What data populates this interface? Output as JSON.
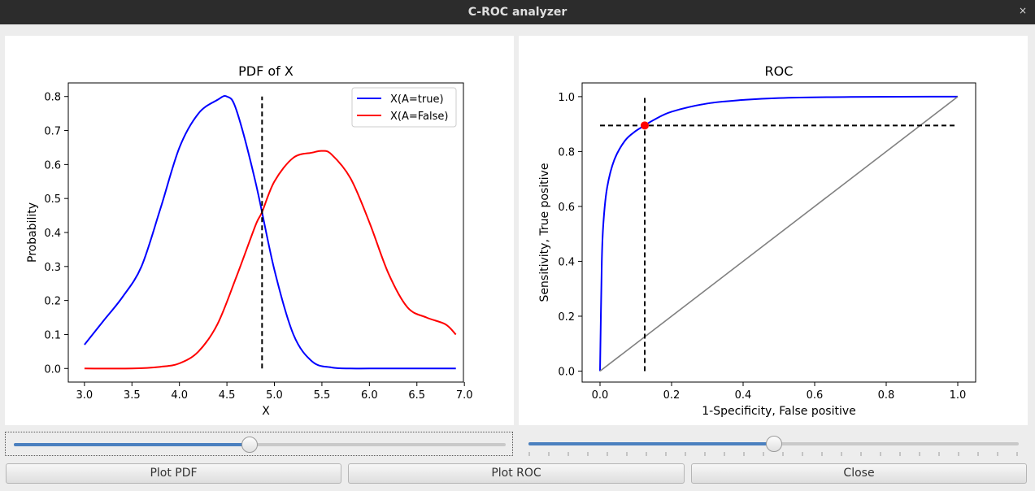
{
  "window": {
    "title": "C-ROC analyzer",
    "close_glyph": "×"
  },
  "pdf_panel": {
    "chart_data": {
      "type": "line",
      "title": "PDF of X",
      "xlabel": "X",
      "ylabel": "Probability",
      "xlim": [
        2.83,
        6.99
      ],
      "ylim": [
        -0.04,
        0.84
      ],
      "xticks": [
        "3.0",
        "3.5",
        "4.0",
        "4.5",
        "5.0",
        "5.5",
        "6.0",
        "6.5",
        "7.0"
      ],
      "yticks": [
        "0.0",
        "0.1",
        "0.2",
        "0.3",
        "0.4",
        "0.5",
        "0.6",
        "0.7",
        "0.8"
      ],
      "legend_position": "top-right",
      "threshold": 4.87,
      "series": [
        {
          "name": "X(A=true)",
          "color": "#0000ff",
          "x": [
            3.0,
            3.2,
            3.4,
            3.6,
            3.8,
            4.0,
            4.2,
            4.4,
            4.5,
            4.6,
            4.8,
            5.0,
            5.2,
            5.4,
            5.6,
            5.8,
            6.0,
            6.5,
            6.91
          ],
          "y": [
            0.07,
            0.14,
            0.21,
            0.3,
            0.47,
            0.65,
            0.75,
            0.79,
            0.8,
            0.76,
            0.55,
            0.29,
            0.1,
            0.02,
            0.003,
            0.0,
            0.0,
            0.0,
            0.0
          ]
        },
        {
          "name": "X(A=False)",
          "color": "#ff0000",
          "x": [
            3.0,
            3.5,
            3.8,
            4.0,
            4.2,
            4.4,
            4.6,
            4.8,
            4.87,
            5.0,
            5.2,
            5.4,
            5.5,
            5.6,
            5.8,
            6.0,
            6.2,
            6.4,
            6.6,
            6.8,
            6.91
          ],
          "y": [
            0.0,
            0.0,
            0.005,
            0.015,
            0.05,
            0.13,
            0.27,
            0.42,
            0.46,
            0.55,
            0.62,
            0.635,
            0.64,
            0.63,
            0.56,
            0.43,
            0.28,
            0.18,
            0.15,
            0.13,
            0.1
          ]
        }
      ]
    }
  },
  "roc_panel": {
    "chart_data": {
      "type": "line",
      "title": "ROC",
      "xlabel": "1-Specificity, False positive",
      "ylabel": "Sensitivity, True positive",
      "xlim": [
        -0.05,
        1.05
      ],
      "ylim": [
        -0.04,
        1.05
      ],
      "xticks": [
        "0.0",
        "0.2",
        "0.4",
        "0.6",
        "0.8",
        "1.0"
      ],
      "yticks": [
        "0.0",
        "0.2",
        "0.4",
        "0.6",
        "0.8",
        "1.0"
      ],
      "operating_point": {
        "x": 0.125,
        "y": 0.895
      },
      "series": [
        {
          "color": "#0000ff",
          "x": [
            0.0,
            0.005,
            0.01,
            0.02,
            0.04,
            0.07,
            0.1,
            0.125,
            0.15,
            0.2,
            0.3,
            0.4,
            0.5,
            0.7,
            1.0
          ],
          "y": [
            0.0,
            0.4,
            0.55,
            0.67,
            0.77,
            0.84,
            0.875,
            0.895,
            0.915,
            0.945,
            0.975,
            0.988,
            0.995,
            0.999,
            1.0
          ]
        },
        {
          "color": "#808080",
          "x": [
            0.0,
            1.0
          ],
          "y": [
            0.0,
            1.0
          ]
        }
      ]
    }
  },
  "sliders": [
    {
      "name": "threshold-slider",
      "value_fraction": 0.48,
      "focused": true
    },
    {
      "name": "specificity-slider",
      "value_fraction": 0.5,
      "focused": false
    }
  ],
  "buttons": {
    "plot_pdf": "Plot PDF",
    "plot_roc": "Plot ROC",
    "close": "Close"
  },
  "colors": {
    "slider_fill": "#4b80bf",
    "slider_track": "#c9c9c9",
    "titlebar": "#2c2c2c"
  }
}
